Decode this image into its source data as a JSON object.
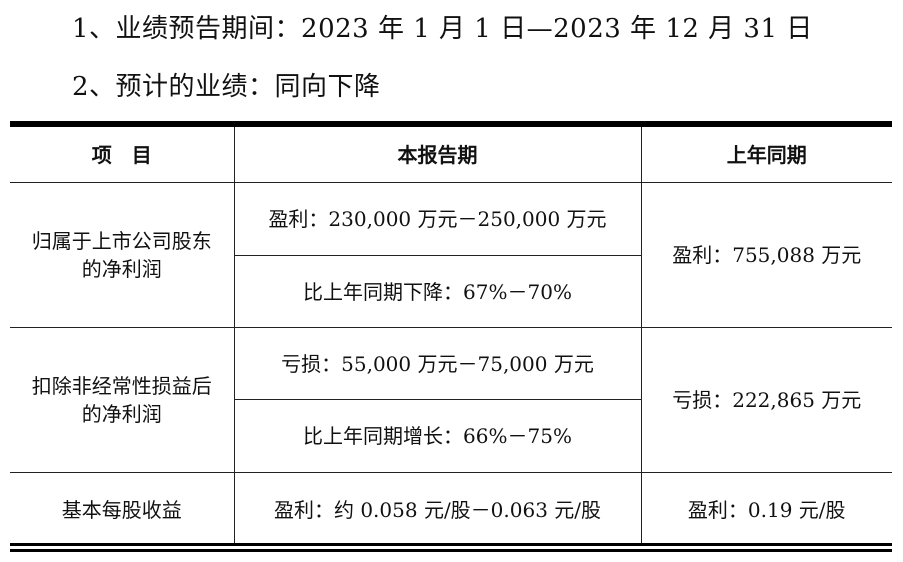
{
  "intro": {
    "line1": "1、业绩预告期间：2023 年 1 月 1 日—2023 年 12 月 31 日",
    "line2": "2、预计的业绩：同向下降"
  },
  "table": {
    "headers": [
      "项　目",
      "本报告期",
      "上年同期"
    ],
    "rows": {
      "net_profit": {
        "label_line1": "归属于上市公司股东",
        "label_line2": "的净利润",
        "current_value": "盈利：230,000 万元－250,000 万元",
        "current_change": "比上年同期下降：67%－70%",
        "prior": "盈利：755,088 万元"
      },
      "net_profit_excl": {
        "label_line1": "扣除非经常性损益后",
        "label_line2": "的净利润",
        "current_value": "亏损：55,000 万元－75,000 万元",
        "current_change": "比上年同期增长：66%－75%",
        "prior": "亏损：222,865 万元"
      },
      "eps": {
        "label": "基本每股收益",
        "current": "盈利：约 0.058 元/股－0.063 元/股",
        "prior": "盈利：0.19 元/股"
      }
    }
  }
}
